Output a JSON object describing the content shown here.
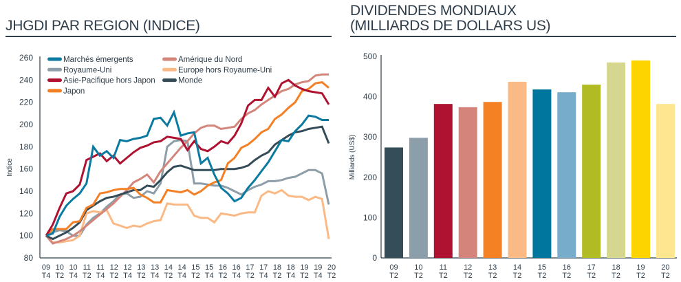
{
  "left_panel": {
    "title": "JHGDI PAR REGION (INDICE)"
  },
  "right_panel": {
    "title_line1": "DIVIDENDES MONDIAUX",
    "title_line2": "(MILLIARDS DE DOLLARS US)"
  },
  "chart_data": [
    {
      "type": "line",
      "title": "JHGDI PAR REGION (INDICE)",
      "xlabel": "",
      "ylabel": "Indice",
      "ylim": [
        80,
        260
      ],
      "yticks": [
        80,
        100,
        120,
        140,
        160,
        180,
        200,
        220,
        240,
        260
      ],
      "grid": false,
      "legend_position": "top-left",
      "tick_labels": [
        "09 T4",
        "10 T2",
        "10 T4",
        "11 T2",
        "11 T4",
        "12 T2",
        "12 T4",
        "13 T2",
        "13 T4",
        "14 T2",
        "14 T4",
        "15 T2",
        "15 T4",
        "16 T2",
        "16 T4",
        "17 T2",
        "17 T4",
        "18 T2",
        "18 T4",
        "19 T2",
        "19 T4",
        "20 T2"
      ],
      "x_frequency": "quarterly",
      "series": [
        {
          "name": "Marchés émergents",
          "color": "#0b7aa1",
          "values": [
            100,
            102,
            117,
            127,
            133,
            138,
            147,
            180,
            172,
            176,
            170,
            186,
            185,
            187,
            188,
            190,
            205,
            206,
            199,
            211,
            190,
            192,
            193,
            165,
            170,
            155,
            143,
            138,
            131,
            134,
            143,
            150,
            158,
            166,
            176,
            186,
            185,
            194,
            200,
            208,
            207,
            204,
            204
          ]
        },
        {
          "name": "Amérique du Nord",
          "color": "#d4857a",
          "values": [
            100,
            93,
            95,
            97,
            100,
            104,
            109,
            114,
            119,
            124,
            129,
            135,
            141,
            148,
            151,
            155,
            148,
            158,
            165,
            172,
            179,
            185,
            192,
            197,
            199,
            199,
            196,
            197,
            198,
            205,
            210,
            213,
            218,
            222,
            226,
            230,
            232,
            236,
            238,
            239,
            244,
            245,
            245
          ]
        },
        {
          "name": "Royaume-Uni",
          "color": "#8d9ea8",
          "values": [
            100,
            103,
            105,
            104,
            100,
            100,
            110,
            116,
            120,
            126,
            131,
            137,
            138,
            134,
            135,
            140,
            138,
            147,
            180,
            185,
            186,
            185,
            147,
            147,
            146,
            145,
            145,
            143,
            140,
            137,
            141,
            144,
            146,
            149,
            149,
            150,
            152,
            153,
            156,
            159,
            159,
            156,
            128
          ]
        },
        {
          "name": "Europe hors Royaume-Uni",
          "color": "#fab985",
          "values": [
            100,
            94,
            94,
            95,
            96,
            100,
            120,
            122,
            121,
            123,
            111,
            109,
            107,
            109,
            108,
            111,
            113,
            114,
            129,
            128,
            128,
            128,
            118,
            116,
            116,
            112,
            120,
            119,
            118,
            120,
            121,
            121,
            136,
            140,
            138,
            141,
            136,
            135,
            135,
            132,
            135,
            133,
            97
          ]
        },
        {
          "name": "Asie-Pacifique hors Japon",
          "color": "#af1230",
          "values": [
            100,
            110,
            125,
            138,
            140,
            146,
            168,
            171,
            174,
            167,
            172,
            165,
            170,
            175,
            179,
            181,
            184,
            185,
            189,
            188,
            187,
            177,
            185,
            178,
            176,
            180,
            185,
            183,
            190,
            201,
            217,
            222,
            222,
            233,
            225,
            237,
            240,
            235,
            232,
            230,
            229,
            228,
            218
          ]
        },
        {
          "name": "Monde",
          "color": "#344b58",
          "values": [
            100,
            97,
            100,
            103,
            107,
            112,
            123,
            127,
            131,
            134,
            135,
            137,
            139,
            141,
            141,
            145,
            144,
            150,
            157,
            162,
            163,
            161,
            159,
            159,
            159,
            159,
            160,
            160,
            160,
            161,
            163,
            168,
            172,
            175,
            182,
            186,
            190,
            193,
            194,
            196,
            197,
            198,
            183
          ]
        },
        {
          "name": "Japon",
          "color": "#f47f24",
          "values": [
            100,
            106,
            106,
            106,
            112,
            113,
            125,
            128,
            138,
            139,
            141,
            142,
            142,
            143,
            137,
            134,
            130,
            130,
            141,
            140,
            139,
            141,
            137,
            140,
            145,
            148,
            150,
            165,
            170,
            179,
            182,
            187,
            193,
            196,
            205,
            209,
            215,
            220,
            230,
            232,
            237,
            238,
            233
          ]
        }
      ]
    },
    {
      "type": "bar",
      "title": "DIVIDENDES MONDIAUX (MILLIARDS DE DOLLARS US)",
      "xlabel": "",
      "ylabel": "Milliards (US$)",
      "ylim": [
        0,
        500
      ],
      "yticks": [
        0,
        100,
        200,
        300,
        400,
        500
      ],
      "grid": false,
      "categories": [
        {
          "line1": "09",
          "line2": "T2"
        },
        {
          "line1": "10",
          "line2": "T2"
        },
        {
          "line1": "11",
          "line2": "T2"
        },
        {
          "line1": "12",
          "line2": "T2"
        },
        {
          "line1": "13",
          "line2": "T2"
        },
        {
          "line1": "14",
          "line2": "T2"
        },
        {
          "line1": "15",
          "line2": "T2"
        },
        {
          "line1": "16",
          "line2": "T2"
        },
        {
          "line1": "17",
          "line2": "T2"
        },
        {
          "line1": "18",
          "line2": "T2"
        },
        {
          "line1": "19",
          "line2": "T2"
        },
        {
          "line1": "20",
          "line2": "T2"
        }
      ],
      "values": [
        274,
        298,
        382,
        374,
        387,
        437,
        418,
        411,
        430,
        485,
        490,
        382
      ],
      "colors": [
        "#354c59",
        "#8c9ea9",
        "#af1230",
        "#d4847a",
        "#f48124",
        "#f9ba85",
        "#00769e",
        "#77accb",
        "#b1bb24",
        "#d5d791",
        "#fdd300",
        "#fde68f"
      ]
    }
  ]
}
